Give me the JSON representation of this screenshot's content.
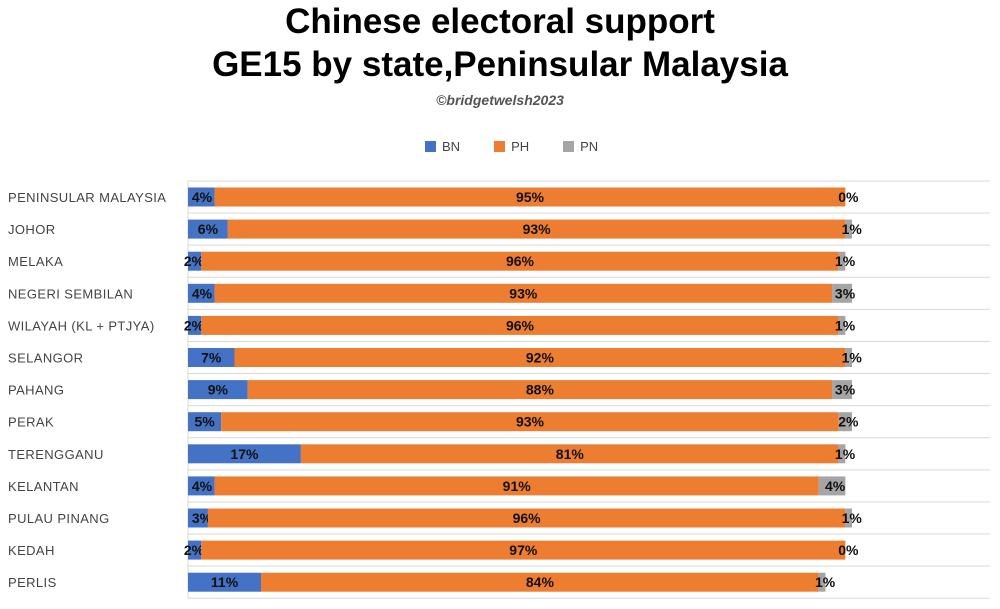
{
  "title_lines": [
    "Chinese electoral support",
    "GE15 by state,Peninsular Malaysia"
  ],
  "credit": "©bridgetwelsh2023",
  "colors": {
    "BN": "#4472c4",
    "PH": "#ed7d31",
    "PN": "#a5a5a5"
  },
  "chart_data": {
    "type": "bar",
    "orientation": "horizontal",
    "stacked": true,
    "percent_stacked": true,
    "title": "Chinese electoral support GE15 by state,Peninsular Malaysia",
    "legend": {
      "position": "top",
      "entries": [
        "BN",
        "PH",
        "PN"
      ]
    },
    "grid": true,
    "xlim": [
      0,
      100
    ],
    "categories": [
      "PENINSULAR MALAYSIA",
      "JOHOR",
      "MELAKA",
      "NEGERI SEMBILAN",
      "WILAYAH (KL + PTJYA)",
      "SELANGOR",
      "PAHANG",
      "PERAK",
      "TERENGGANU",
      "KELANTAN",
      "PULAU PINANG",
      "KEDAH",
      "PERLIS"
    ],
    "series": [
      {
        "name": "BN",
        "values": [
          4,
          6,
          2,
          4,
          2,
          7,
          9,
          5,
          17,
          4,
          3,
          2,
          11
        ],
        "labels": [
          "4%",
          "6%",
          "2%",
          "4%",
          "2%",
          "7%",
          "9%",
          "5%",
          "17%",
          "4%",
          "3%",
          "2%",
          "11%"
        ]
      },
      {
        "name": "PH",
        "values": [
          95,
          93,
          96,
          93,
          96,
          92,
          88,
          93,
          81,
          91,
          96,
          97,
          84
        ],
        "labels": [
          "95%",
          "93%",
          "96%",
          "93%",
          "96%",
          "92%",
          "88%",
          "93%",
          "81%",
          "91%",
          "96%",
          "97%",
          "84%"
        ]
      },
      {
        "name": "PN",
        "values": [
          0,
          1,
          1,
          3,
          1,
          1,
          3,
          2,
          1,
          4,
          1,
          0,
          1
        ],
        "labels": [
          "0%",
          "1%",
          "1%",
          "3%",
          "1%",
          "1%",
          "3%",
          "2%",
          "1%",
          "4%",
          "1%",
          "0%",
          "1%"
        ]
      }
    ]
  }
}
